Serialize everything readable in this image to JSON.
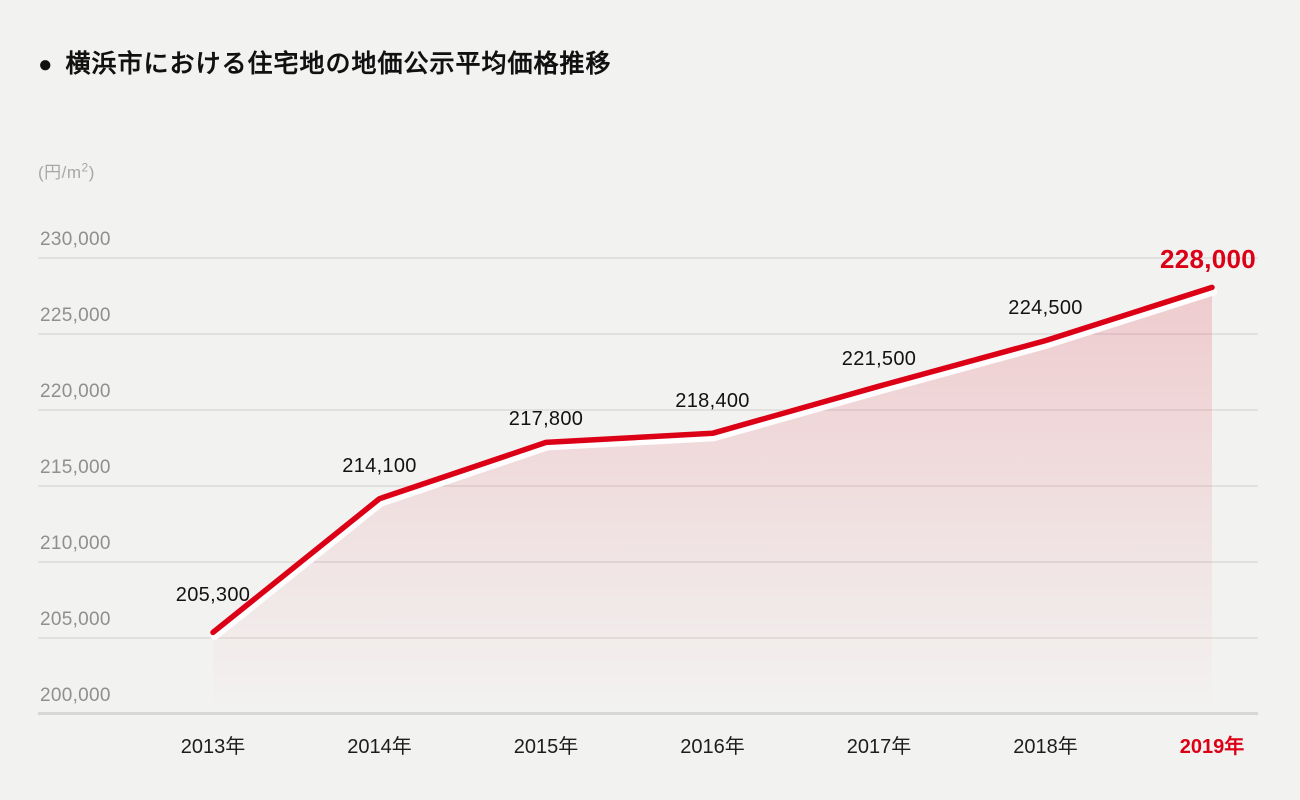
{
  "header": {
    "bullet": "●",
    "title": "横浜市における住宅地の地価公示平均価格推移"
  },
  "chart_data": {
    "type": "area",
    "title": "横浜市における住宅地の地価公示平均価格推移",
    "unit": {
      "prefix": "(円/m",
      "sup": "2",
      "suffix": ")"
    },
    "categories": [
      "2013年",
      "2014年",
      "2015年",
      "2016年",
      "2017年",
      "2018年",
      "2019年"
    ],
    "values": [
      205300,
      214100,
      217800,
      218400,
      221500,
      224500,
      228000
    ],
    "value_labels": [
      "205,300",
      "214,100",
      "217,800",
      "218,400",
      "221,500",
      "224,500",
      "228,000"
    ],
    "ylabel": "(円/m2)",
    "ylim": [
      200000,
      230000
    ],
    "ytick_step": 5000,
    "yticks": [
      "200,000",
      "205,000",
      "210,000",
      "215,000",
      "220,000",
      "225,000",
      "230,000"
    ],
    "grid": true,
    "legend": "none",
    "highlight_index": 6,
    "colors": {
      "line": "#dc0016",
      "line_underlay": "#ffffff",
      "accent_text": "#dc0016",
      "fill_top_opacity": 0.16,
      "fill_bottom_opacity": 0,
      "grid": "#e2e1e0",
      "axis_baseline": "#d8d7d5",
      "ytick_text": "#8f8f8f",
      "xtick_text": "#1d1d1d",
      "label_text": "#121212",
      "title_text": "#111111",
      "unit_text": "#a7a7a7",
      "background": "#f2f2f1"
    }
  }
}
